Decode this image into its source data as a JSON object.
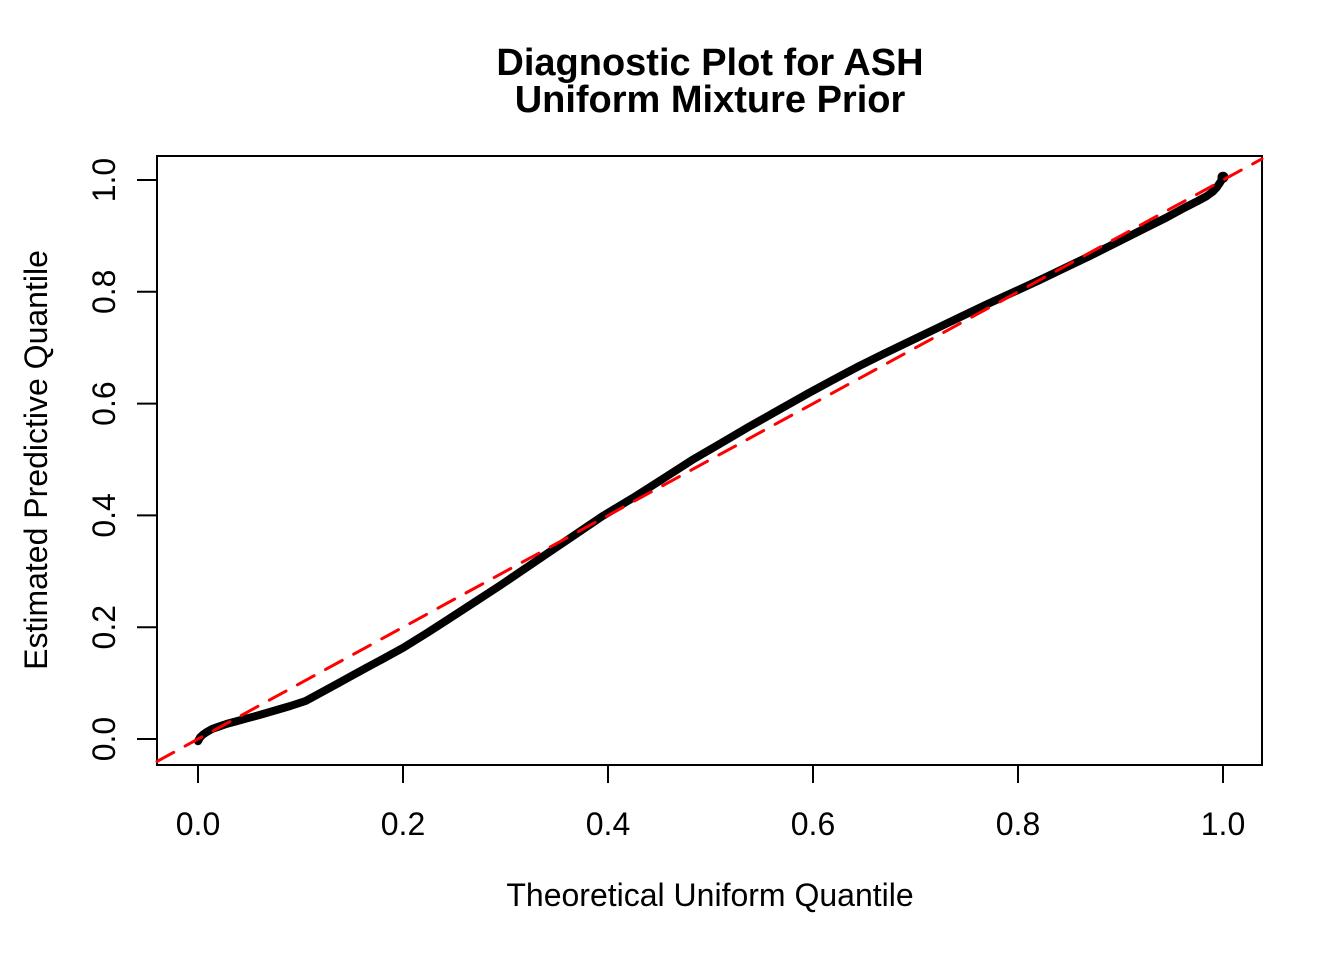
{
  "chart_data": {
    "type": "line",
    "title_line1": "Diagnostic Plot for ASH",
    "title_line2": "Uniform Mixture Prior",
    "xlabel": "Theoretical Uniform Quantile",
    "ylabel": "Estimated Predictive Quantile",
    "x_ticks": [
      0.0,
      0.2,
      0.4,
      0.6,
      0.8,
      1.0
    ],
    "y_ticks": [
      0.0,
      0.2,
      0.4,
      0.6,
      0.8,
      1.0
    ],
    "x_tick_labels": [
      "0.0",
      "0.2",
      "0.4",
      "0.6",
      "0.8",
      "1.0"
    ],
    "y_tick_labels": [
      "0.0",
      "0.2",
      "0.4",
      "0.6",
      "0.8",
      "1.0"
    ],
    "xlim": [
      -0.04,
      1.04
    ],
    "ylim": [
      -0.04,
      1.04
    ],
    "grid": false,
    "legend_position": "none",
    "background_color": "#ffffff",
    "frame_color": "#000000",
    "series": [
      {
        "name": "estimated-predictive-quantile-curve",
        "color": "#000000",
        "style": "solid",
        "linewidth": 8,
        "end_cap_radius": 5.5,
        "points": [
          [
            0.0,
            -0.004
          ],
          [
            0.002,
            0.003
          ],
          [
            0.005,
            0.008
          ],
          [
            0.009,
            0.013
          ],
          [
            0.014,
            0.018
          ],
          [
            0.02,
            0.022
          ],
          [
            0.028,
            0.027
          ],
          [
            0.038,
            0.032
          ],
          [
            0.048,
            0.037
          ],
          [
            0.06,
            0.043
          ],
          [
            0.075,
            0.051
          ],
          [
            0.09,
            0.059
          ],
          [
            0.105,
            0.068
          ],
          [
            0.12,
            0.083
          ],
          [
            0.135,
            0.098
          ],
          [
            0.15,
            0.113
          ],
          [
            0.165,
            0.128
          ],
          [
            0.18,
            0.143
          ],
          [
            0.2,
            0.163
          ],
          [
            0.222,
            0.188
          ],
          [
            0.245,
            0.215
          ],
          [
            0.27,
            0.245
          ],
          [
            0.295,
            0.275
          ],
          [
            0.32,
            0.306
          ],
          [
            0.345,
            0.337
          ],
          [
            0.366,
            0.363
          ],
          [
            0.394,
            0.398
          ],
          [
            0.424,
            0.431
          ],
          [
            0.454,
            0.466
          ],
          [
            0.482,
            0.499
          ],
          [
            0.51,
            0.529
          ],
          [
            0.537,
            0.558
          ],
          [
            0.563,
            0.585
          ],
          [
            0.595,
            0.618
          ],
          [
            0.62,
            0.643
          ],
          [
            0.645,
            0.667
          ],
          [
            0.67,
            0.69
          ],
          [
            0.695,
            0.712
          ],
          [
            0.72,
            0.734
          ],
          [
            0.745,
            0.756
          ],
          [
            0.77,
            0.778
          ],
          [
            0.795,
            0.799
          ],
          [
            0.82,
            0.82
          ],
          [
            0.845,
            0.842
          ],
          [
            0.87,
            0.864
          ],
          [
            0.895,
            0.887
          ],
          [
            0.92,
            0.91
          ],
          [
            0.945,
            0.933
          ],
          [
            0.962,
            0.95
          ],
          [
            0.975,
            0.962
          ],
          [
            0.984,
            0.971
          ],
          [
            0.99,
            0.979
          ],
          [
            0.994,
            0.987
          ],
          [
            0.997,
            0.995
          ],
          [
            0.999,
            1.001
          ],
          [
            1.0,
            1.005
          ]
        ]
      },
      {
        "name": "identity-reference-line",
        "color": "#FF0000",
        "style": "dashed",
        "linewidth": 3,
        "points": [
          [
            -0.04,
            -0.04
          ],
          [
            1.038,
            1.038
          ]
        ]
      }
    ]
  }
}
